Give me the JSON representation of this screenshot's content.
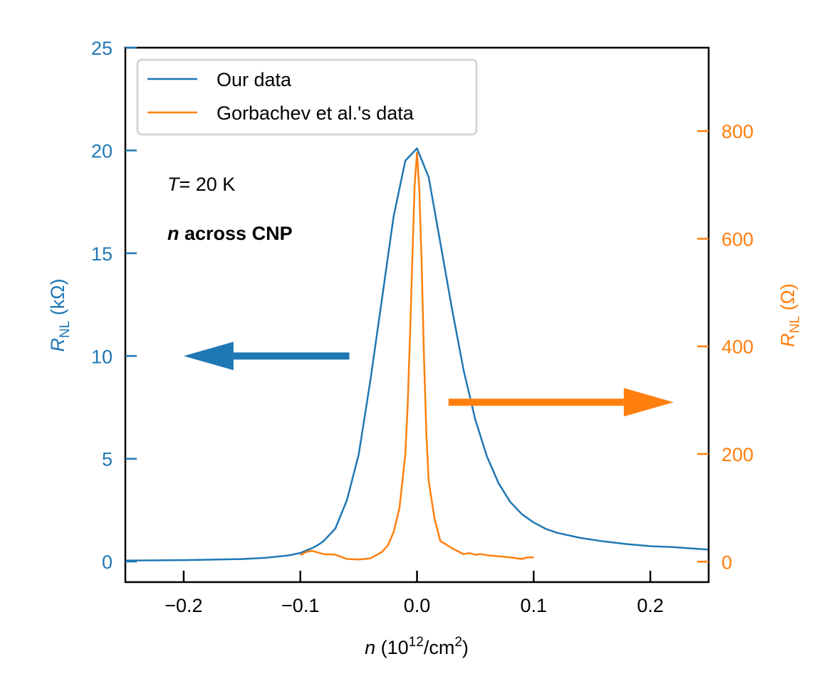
{
  "chart_data": {
    "type": "line",
    "title": "",
    "xlabel": "n (10^12/cm^2)",
    "xlabel_parts": {
      "var": "n",
      "pre": " (10",
      "sup1": "12",
      "mid": "/cm",
      "sup2": "2",
      "post": ")"
    },
    "xlim": [
      -0.25,
      0.25
    ],
    "xticks": [
      -0.2,
      -0.1,
      0.0,
      0.1,
      0.2
    ],
    "xtick_labels": [
      "−0.2",
      "−0.1",
      "0.0",
      "0.1",
      "0.2"
    ],
    "left_axis": {
      "label": "R_NL (kΩ)",
      "label_parts": {
        "var": "R",
        "sub": "NL",
        "unit": " (kΩ)"
      },
      "ylim": [
        -1,
        25
      ],
      "ticks": [
        0,
        5,
        10,
        15,
        20,
        25
      ],
      "tick_labels": [
        "0",
        "5",
        "10",
        "15",
        "20",
        "25"
      ],
      "color": "#1f77b4"
    },
    "right_axis": {
      "label": "R_NL (Ω)",
      "label_parts": {
        "var": "R",
        "sub": "NL",
        "unit": " (Ω)"
      },
      "ylim": [
        -38,
        955
      ],
      "ticks": [
        0,
        200,
        400,
        600,
        800
      ],
      "tick_labels": [
        "0",
        "200",
        "400",
        "600",
        "800"
      ],
      "color": "#ff7f0e"
    },
    "series": [
      {
        "name": "Our data",
        "axis": "left",
        "color": "#1f77b4",
        "x": [
          -0.25,
          -0.2,
          -0.15,
          -0.13,
          -0.11,
          -0.1,
          -0.09,
          -0.085,
          -0.08,
          -0.07,
          -0.06,
          -0.05,
          -0.04,
          -0.03,
          -0.02,
          -0.01,
          0.0,
          0.01,
          0.02,
          0.03,
          0.04,
          0.05,
          0.06,
          0.07,
          0.08,
          0.09,
          0.1,
          0.11,
          0.12,
          0.14,
          0.16,
          0.18,
          0.2,
          0.22,
          0.25
        ],
        "y": [
          0.05,
          0.07,
          0.12,
          0.18,
          0.3,
          0.42,
          0.65,
          0.8,
          1.0,
          1.6,
          3.0,
          5.2,
          8.8,
          12.8,
          16.8,
          19.5,
          20.1,
          18.7,
          15.5,
          12.3,
          9.3,
          6.9,
          5.1,
          3.8,
          2.9,
          2.3,
          1.9,
          1.6,
          1.4,
          1.15,
          0.98,
          0.85,
          0.75,
          0.7,
          0.58
        ]
      },
      {
        "name": "Gorbachev et al.'s data",
        "axis": "right",
        "color": "#ff7f0e",
        "x": [
          -0.1,
          -0.095,
          -0.09,
          -0.08,
          -0.07,
          -0.06,
          -0.05,
          -0.04,
          -0.035,
          -0.03,
          -0.025,
          -0.02,
          -0.015,
          -0.01,
          -0.008,
          -0.006,
          -0.004,
          -0.002,
          0.0,
          0.002,
          0.004,
          0.006,
          0.008,
          0.01,
          0.015,
          0.02,
          0.025,
          0.03,
          0.04,
          0.045,
          0.05,
          0.055,
          0.06,
          0.07,
          0.08,
          0.09,
          0.095,
          0.1
        ],
        "y": [
          12,
          18,
          20,
          14,
          13,
          5,
          4,
          6,
          12,
          18,
          30,
          55,
          100,
          200,
          290,
          420,
          560,
          700,
          760,
          690,
          550,
          380,
          240,
          150,
          80,
          38,
          32,
          25,
          14,
          16,
          13,
          14,
          12,
          10,
          8,
          5,
          8,
          8
        ]
      }
    ],
    "legend": {
      "position": "top-left",
      "entries": [
        "Our data",
        "Gorbachev et al.'s data"
      ]
    },
    "annotations": [
      {
        "id": "temperature",
        "var": "T",
        "text": "= 20 K",
        "x": -0.22,
        "y_left": 18.0
      },
      {
        "id": "density-note",
        "var": "n",
        "text": " across CNP",
        "x": -0.22,
        "y_left": 15.6
      }
    ],
    "arrows": [
      {
        "id": "left-arrow",
        "color": "#1f77b4",
        "from": [
          -0.058,
          10.0
        ],
        "to": [
          -0.2,
          10.0
        ],
        "points_to": "left axis"
      },
      {
        "id": "right-arrow",
        "color": "#ff7f0e",
        "from": [
          0.027,
          7.75
        ],
        "to": [
          0.22,
          7.75
        ],
        "points_to": "right axis"
      }
    ]
  }
}
